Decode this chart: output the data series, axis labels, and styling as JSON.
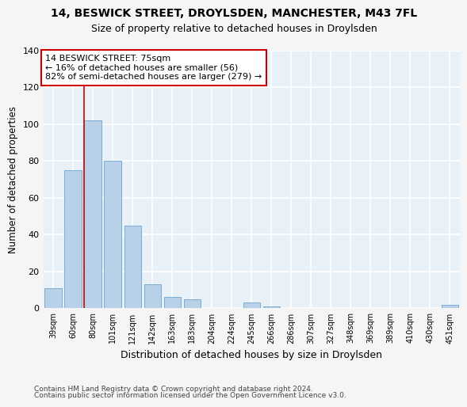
{
  "title_line1": "14, BESWICK STREET, DROYLSDEN, MANCHESTER, M43 7FL",
  "title_line2": "Size of property relative to detached houses in Droylsden",
  "xlabel": "Distribution of detached houses by size in Droylsden",
  "ylabel": "Number of detached properties",
  "categories": [
    "39sqm",
    "60sqm",
    "80sqm",
    "101sqm",
    "121sqm",
    "142sqm",
    "163sqm",
    "183sqm",
    "204sqm",
    "224sqm",
    "245sqm",
    "266sqm",
    "286sqm",
    "307sqm",
    "327sqm",
    "348sqm",
    "369sqm",
    "389sqm",
    "410sqm",
    "430sqm",
    "451sqm"
  ],
  "values": [
    11,
    75,
    102,
    80,
    45,
    13,
    6,
    5,
    0,
    0,
    3,
    1,
    0,
    0,
    0,
    0,
    0,
    0,
    0,
    0,
    2
  ],
  "bar_color": "#b8d0e8",
  "bar_edge_color": "#7aadd4",
  "annotation_text": "14 BESWICK STREET: 75sqm\n← 16% of detached houses are smaller (56)\n82% of semi-detached houses are larger (279) →",
  "annotation_box_color": "#ffffff",
  "annotation_box_edge": "#cc0000",
  "red_line_color": "#cc0000",
  "plot_bg_color": "#e8f0f8",
  "grid_color": "#ffffff",
  "footer_line1": "Contains HM Land Registry data © Crown copyright and database right 2024.",
  "footer_line2": "Contains public sector information licensed under the Open Government Licence v3.0.",
  "fig_bg_color": "#f5f5f5",
  "ylim": [
    0,
    140
  ],
  "yticks": [
    0,
    20,
    40,
    60,
    80,
    100,
    120,
    140
  ],
  "red_line_xindex": 2
}
